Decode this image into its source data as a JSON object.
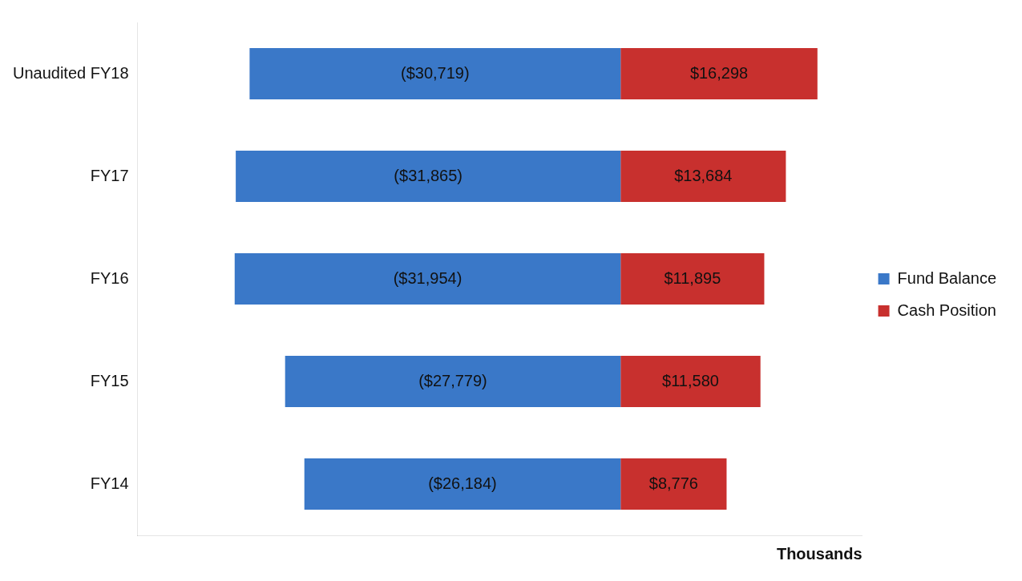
{
  "chart_data": {
    "type": "bar",
    "orientation": "horizontal",
    "stacked": true,
    "xlabel": "Thousands",
    "categories": [
      "Unaudited FY18",
      "FY17",
      "FY16",
      "FY15",
      "FY14"
    ],
    "tick_labels": "y",
    "legend": "right",
    "grid": false,
    "series": [
      {
        "name": "Fund Balance",
        "color": "#3a78c8",
        "values": [
          -30719,
          -31865,
          -31954,
          -27779,
          -26184
        ],
        "value_labels": [
          "($30,719)",
          "($31,865)",
          "($31,954)",
          "($27,779)",
          "($26,184)"
        ]
      },
      {
        "name": "Cash Position",
        "color": "#c8302e",
        "values": [
          16298,
          13684,
          11895,
          11580,
          8776
        ],
        "value_labels": [
          "$16,298",
          "$13,684",
          "$11,895",
          "$11,580",
          "$8,776"
        ]
      }
    ]
  }
}
